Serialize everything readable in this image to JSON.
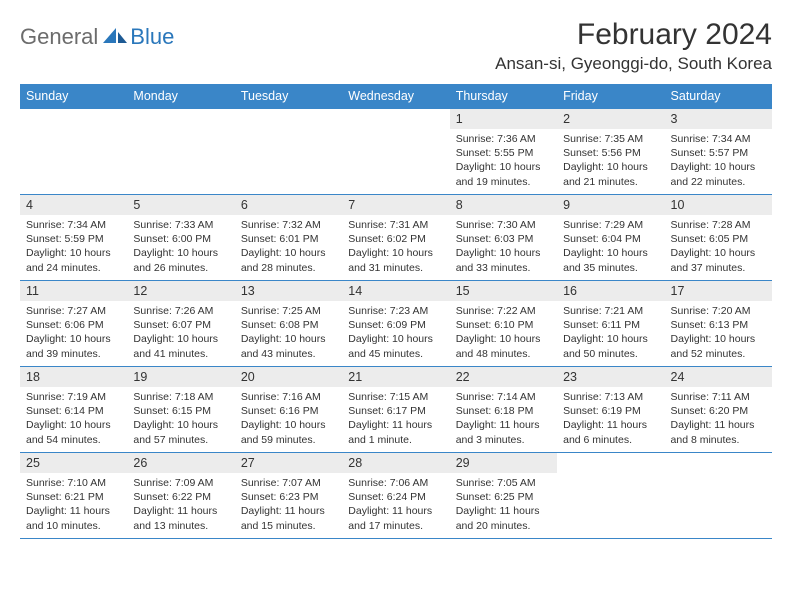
{
  "logo": {
    "text1": "General",
    "text2": "Blue"
  },
  "header": {
    "month_title": "February 2024",
    "location": "Ansan-si, Gyeonggi-do, South Korea"
  },
  "colors": {
    "header_bg": "#3a86c8",
    "header_text": "#ffffff",
    "daynum_bg": "#ececec",
    "border": "#3a86c8",
    "body_text": "#333333",
    "logo_gray": "#6c6c6c",
    "logo_blue": "#2a77bb"
  },
  "weekdays": [
    "Sunday",
    "Monday",
    "Tuesday",
    "Wednesday",
    "Thursday",
    "Friday",
    "Saturday"
  ],
  "weeks": [
    [
      {
        "day": "",
        "lines": []
      },
      {
        "day": "",
        "lines": []
      },
      {
        "day": "",
        "lines": []
      },
      {
        "day": "",
        "lines": []
      },
      {
        "day": "1",
        "lines": [
          "Sunrise: 7:36 AM",
          "Sunset: 5:55 PM",
          "Daylight: 10 hours and 19 minutes."
        ]
      },
      {
        "day": "2",
        "lines": [
          "Sunrise: 7:35 AM",
          "Sunset: 5:56 PM",
          "Daylight: 10 hours and 21 minutes."
        ]
      },
      {
        "day": "3",
        "lines": [
          "Sunrise: 7:34 AM",
          "Sunset: 5:57 PM",
          "Daylight: 10 hours and 22 minutes."
        ]
      }
    ],
    [
      {
        "day": "4",
        "lines": [
          "Sunrise: 7:34 AM",
          "Sunset: 5:59 PM",
          "Daylight: 10 hours and 24 minutes."
        ]
      },
      {
        "day": "5",
        "lines": [
          "Sunrise: 7:33 AM",
          "Sunset: 6:00 PM",
          "Daylight: 10 hours and 26 minutes."
        ]
      },
      {
        "day": "6",
        "lines": [
          "Sunrise: 7:32 AM",
          "Sunset: 6:01 PM",
          "Daylight: 10 hours and 28 minutes."
        ]
      },
      {
        "day": "7",
        "lines": [
          "Sunrise: 7:31 AM",
          "Sunset: 6:02 PM",
          "Daylight: 10 hours and 31 minutes."
        ]
      },
      {
        "day": "8",
        "lines": [
          "Sunrise: 7:30 AM",
          "Sunset: 6:03 PM",
          "Daylight: 10 hours and 33 minutes."
        ]
      },
      {
        "day": "9",
        "lines": [
          "Sunrise: 7:29 AM",
          "Sunset: 6:04 PM",
          "Daylight: 10 hours and 35 minutes."
        ]
      },
      {
        "day": "10",
        "lines": [
          "Sunrise: 7:28 AM",
          "Sunset: 6:05 PM",
          "Daylight: 10 hours and 37 minutes."
        ]
      }
    ],
    [
      {
        "day": "11",
        "lines": [
          "Sunrise: 7:27 AM",
          "Sunset: 6:06 PM",
          "Daylight: 10 hours and 39 minutes."
        ]
      },
      {
        "day": "12",
        "lines": [
          "Sunrise: 7:26 AM",
          "Sunset: 6:07 PM",
          "Daylight: 10 hours and 41 minutes."
        ]
      },
      {
        "day": "13",
        "lines": [
          "Sunrise: 7:25 AM",
          "Sunset: 6:08 PM",
          "Daylight: 10 hours and 43 minutes."
        ]
      },
      {
        "day": "14",
        "lines": [
          "Sunrise: 7:23 AM",
          "Sunset: 6:09 PM",
          "Daylight: 10 hours and 45 minutes."
        ]
      },
      {
        "day": "15",
        "lines": [
          "Sunrise: 7:22 AM",
          "Sunset: 6:10 PM",
          "Daylight: 10 hours and 48 minutes."
        ]
      },
      {
        "day": "16",
        "lines": [
          "Sunrise: 7:21 AM",
          "Sunset: 6:11 PM",
          "Daylight: 10 hours and 50 minutes."
        ]
      },
      {
        "day": "17",
        "lines": [
          "Sunrise: 7:20 AM",
          "Sunset: 6:13 PM",
          "Daylight: 10 hours and 52 minutes."
        ]
      }
    ],
    [
      {
        "day": "18",
        "lines": [
          "Sunrise: 7:19 AM",
          "Sunset: 6:14 PM",
          "Daylight: 10 hours and 54 minutes."
        ]
      },
      {
        "day": "19",
        "lines": [
          "Sunrise: 7:18 AM",
          "Sunset: 6:15 PM",
          "Daylight: 10 hours and 57 minutes."
        ]
      },
      {
        "day": "20",
        "lines": [
          "Sunrise: 7:16 AM",
          "Sunset: 6:16 PM",
          "Daylight: 10 hours and 59 minutes."
        ]
      },
      {
        "day": "21",
        "lines": [
          "Sunrise: 7:15 AM",
          "Sunset: 6:17 PM",
          "Daylight: 11 hours and 1 minute."
        ]
      },
      {
        "day": "22",
        "lines": [
          "Sunrise: 7:14 AM",
          "Sunset: 6:18 PM",
          "Daylight: 11 hours and 3 minutes."
        ]
      },
      {
        "day": "23",
        "lines": [
          "Sunrise: 7:13 AM",
          "Sunset: 6:19 PM",
          "Daylight: 11 hours and 6 minutes."
        ]
      },
      {
        "day": "24",
        "lines": [
          "Sunrise: 7:11 AM",
          "Sunset: 6:20 PM",
          "Daylight: 11 hours and 8 minutes."
        ]
      }
    ],
    [
      {
        "day": "25",
        "lines": [
          "Sunrise: 7:10 AM",
          "Sunset: 6:21 PM",
          "Daylight: 11 hours and 10 minutes."
        ]
      },
      {
        "day": "26",
        "lines": [
          "Sunrise: 7:09 AM",
          "Sunset: 6:22 PM",
          "Daylight: 11 hours and 13 minutes."
        ]
      },
      {
        "day": "27",
        "lines": [
          "Sunrise: 7:07 AM",
          "Sunset: 6:23 PM",
          "Daylight: 11 hours and 15 minutes."
        ]
      },
      {
        "day": "28",
        "lines": [
          "Sunrise: 7:06 AM",
          "Sunset: 6:24 PM",
          "Daylight: 11 hours and 17 minutes."
        ]
      },
      {
        "day": "29",
        "lines": [
          "Sunrise: 7:05 AM",
          "Sunset: 6:25 PM",
          "Daylight: 11 hours and 20 minutes."
        ]
      },
      {
        "day": "",
        "lines": []
      },
      {
        "day": "",
        "lines": []
      }
    ]
  ]
}
